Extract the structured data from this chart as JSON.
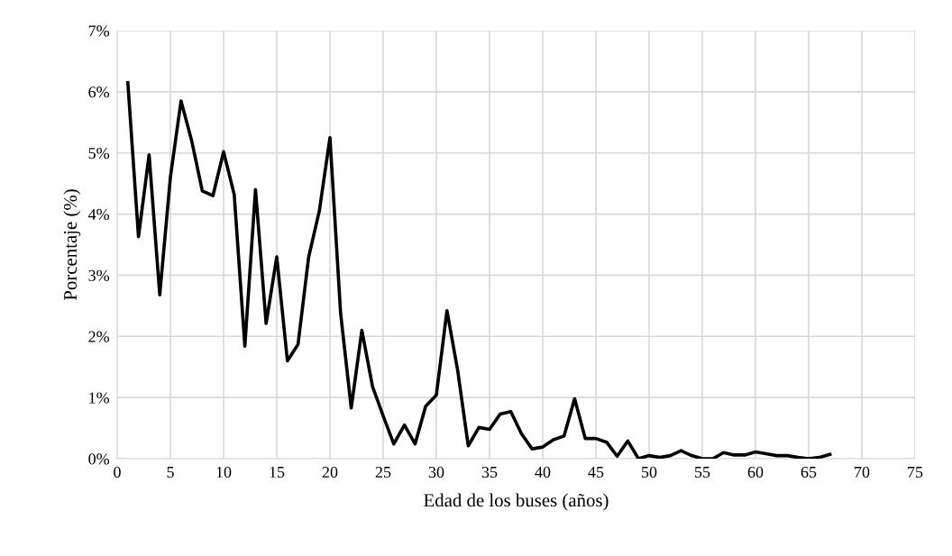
{
  "chart_data": {
    "type": "line",
    "xlabel": "Edad de los buses (años)",
    "ylabel": "Porcentaje (%)",
    "x": [
      1,
      2,
      3,
      4,
      5,
      6,
      7,
      8,
      9,
      10,
      11,
      12,
      13,
      14,
      15,
      16,
      17,
      18,
      19,
      20,
      21,
      22,
      23,
      24,
      25,
      26,
      27,
      28,
      29,
      30,
      31,
      32,
      33,
      34,
      35,
      36,
      37,
      38,
      39,
      40,
      41,
      42,
      43,
      44,
      45,
      46,
      47,
      48,
      49,
      50,
      51,
      52,
      53,
      54,
      55,
      56,
      57,
      58,
      59,
      60,
      61,
      62,
      63,
      64,
      65,
      66,
      67
    ],
    "series": [
      {
        "color": "#000000",
        "values": [
          6.15,
          3.63,
          4.97,
          2.68,
          4.6,
          5.85,
          5.2,
          4.38,
          4.3,
          5.02,
          4.32,
          1.84,
          4.4,
          2.21,
          3.3,
          1.6,
          1.87,
          3.3,
          4.05,
          5.25,
          2.38,
          0.83,
          2.1,
          1.18,
          0.7,
          0.24,
          0.55,
          0.24,
          0.86,
          1.04,
          2.42,
          1.45,
          0.21,
          0.51,
          0.48,
          0.73,
          0.77,
          0.41,
          0.16,
          0.19,
          0.31,
          0.37,
          0.98,
          0.33,
          0.33,
          0.27,
          0.04,
          0.29,
          0.0,
          0.05,
          0.02,
          0.05,
          0.13,
          0.05,
          0.0,
          0.0,
          0.1,
          0.06,
          0.06,
          0.11,
          0.08,
          0.05,
          0.05,
          0.02,
          0.0,
          0.02,
          0.07
        ]
      }
    ],
    "xlim": [
      0,
      75
    ],
    "xticks": [
      0,
      5,
      10,
      15,
      20,
      25,
      30,
      35,
      40,
      45,
      50,
      55,
      60,
      65,
      70,
      75
    ],
    "ylim": [
      0,
      7
    ],
    "yticks": [
      {
        "value": 0,
        "label": "0%"
      },
      {
        "value": 1,
        "label": "1%"
      },
      {
        "value": 2,
        "label": "2%"
      },
      {
        "value": 3,
        "label": "3%"
      },
      {
        "value": 4,
        "label": "4%"
      },
      {
        "value": 5,
        "label": "5%"
      },
      {
        "value": 6,
        "label": "6%"
      },
      {
        "value": 7,
        "label": "7%"
      }
    ],
    "grid": true,
    "marker": "none",
    "line_style": "solid"
  }
}
